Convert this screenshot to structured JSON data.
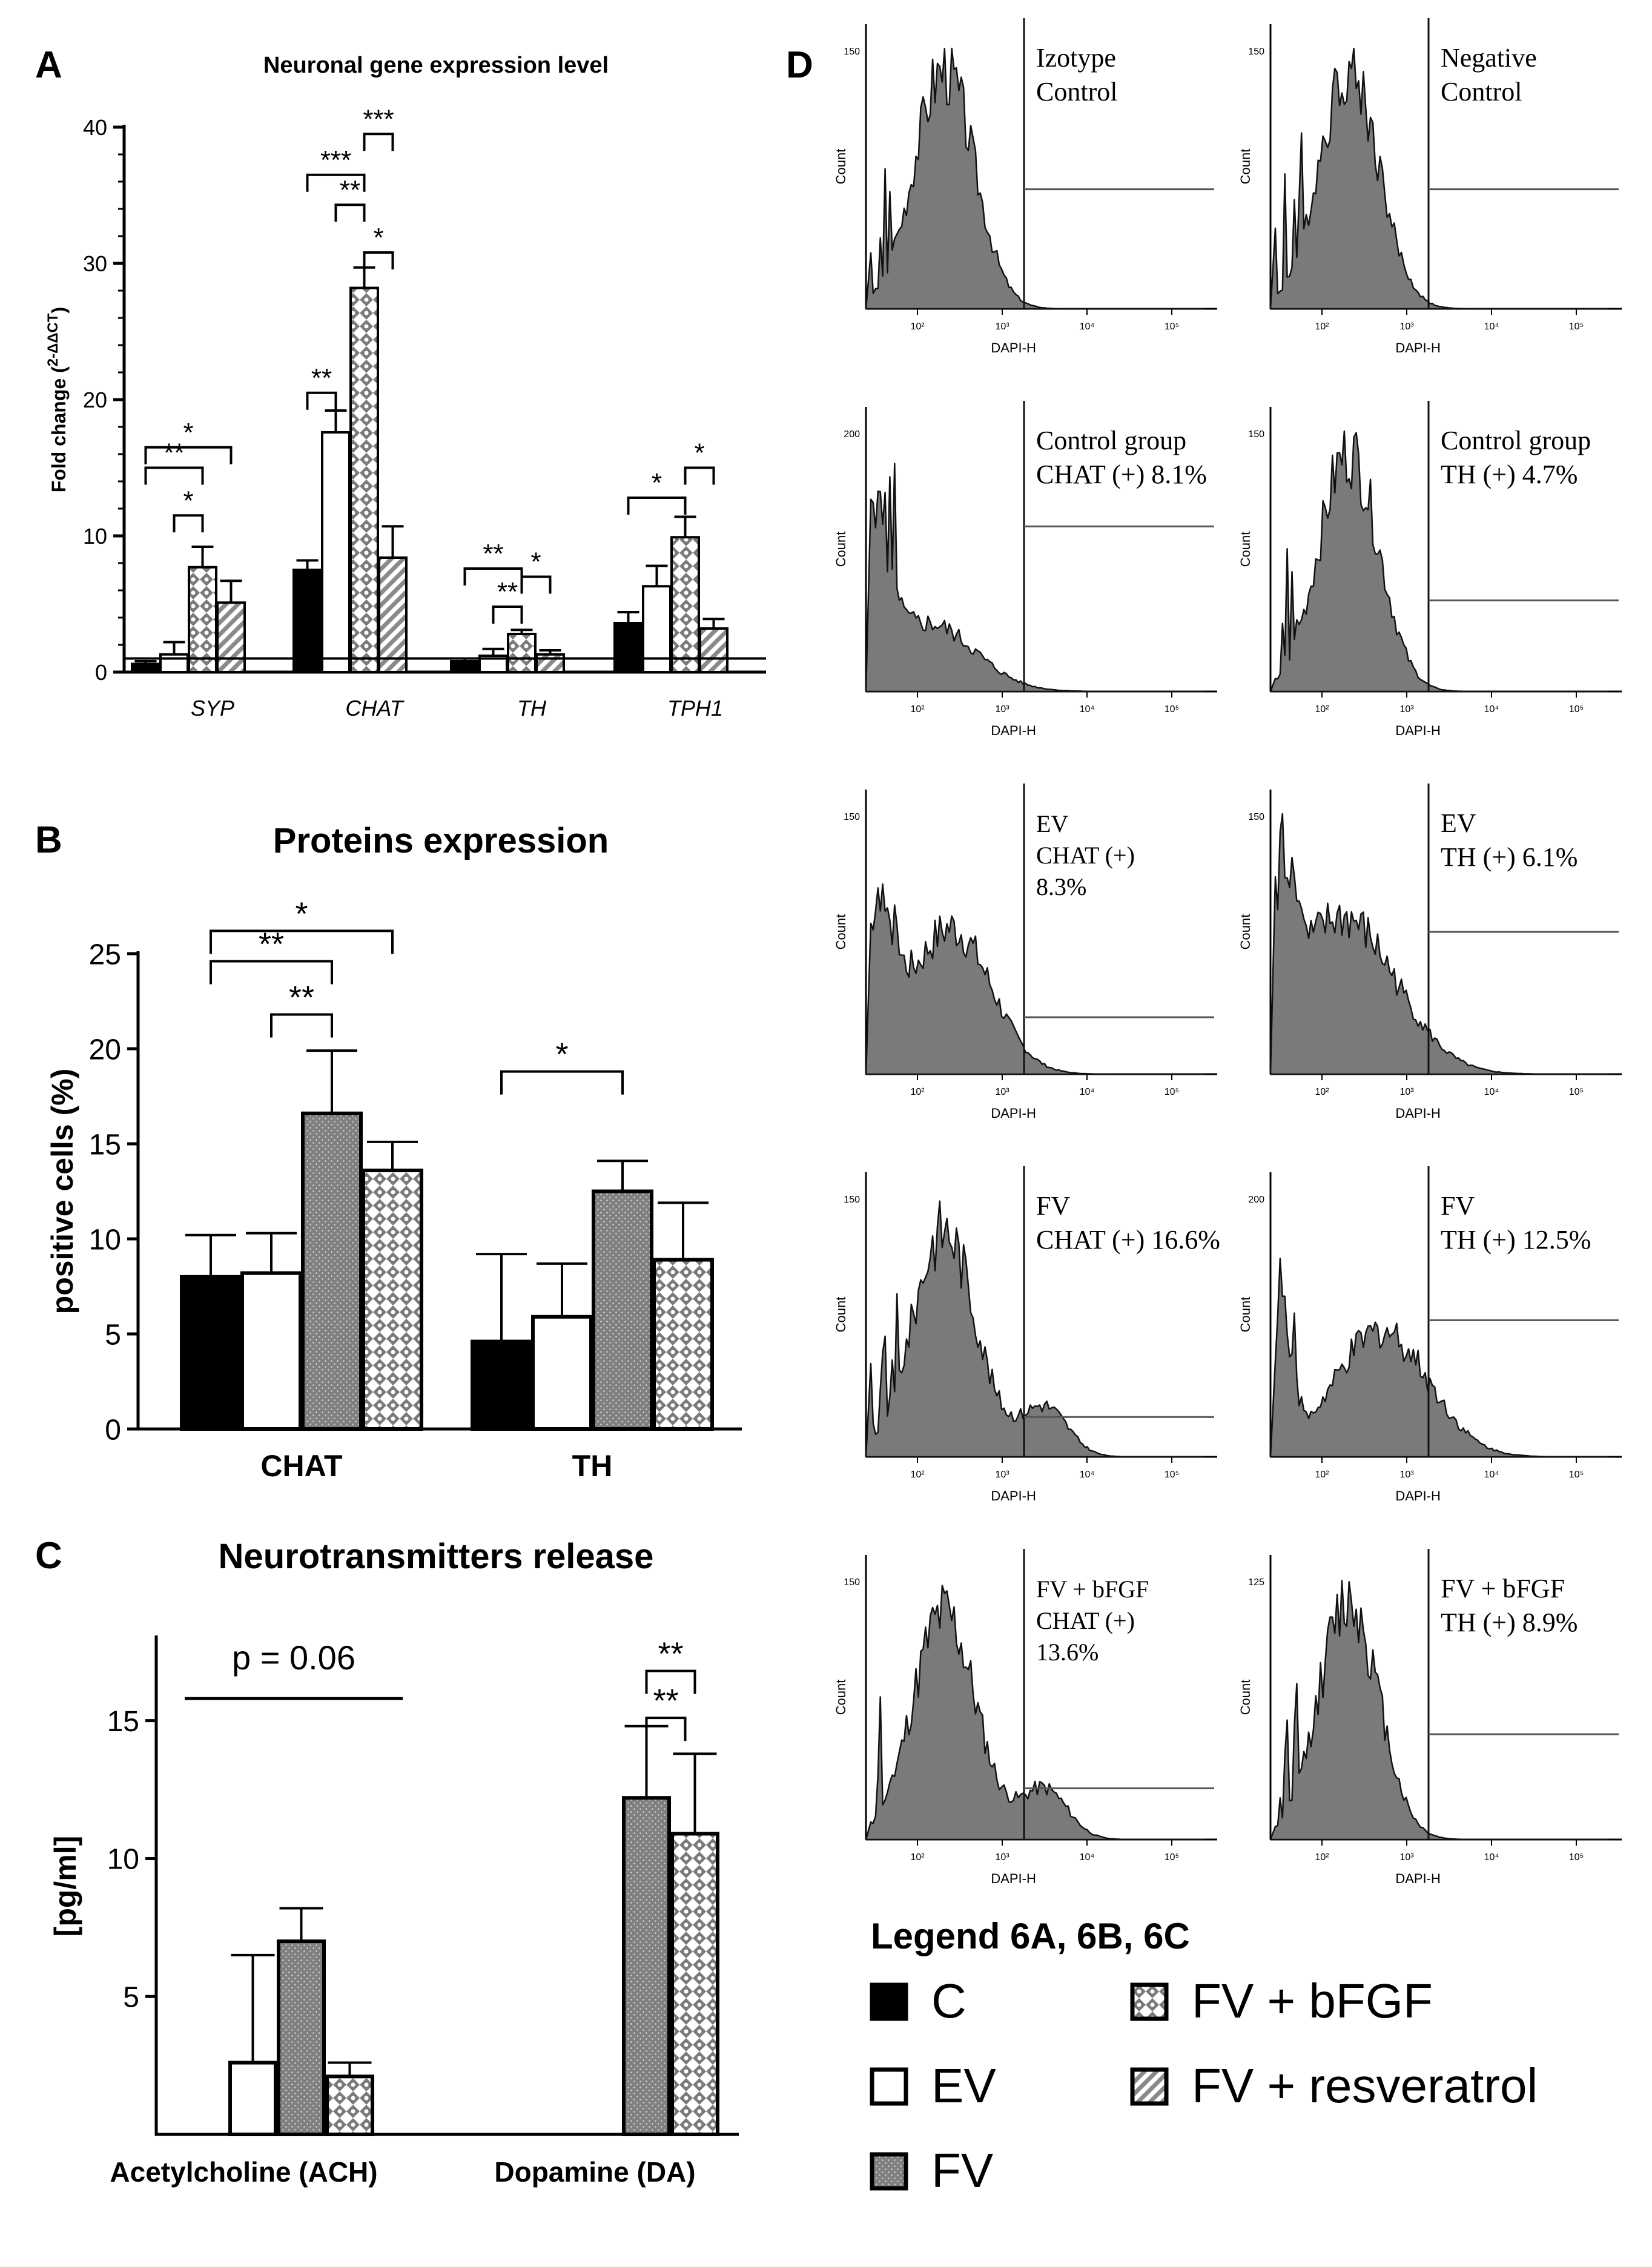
{
  "legend": {
    "title": "Legend 6A, 6B, 6C",
    "items": [
      {
        "label": "C",
        "fill": "#000000"
      },
      {
        "label": "EV",
        "fill": "#ffffff"
      },
      {
        "label": "FV",
        "fill": "fv"
      },
      {
        "label": "FV + bFGF",
        "fill": "fvb"
      },
      {
        "label": "FV + resveratrol",
        "fill": "res"
      }
    ]
  },
  "chart_data": [
    {
      "panel": "A",
      "type": "bar",
      "title": "Neuronal gene expression level",
      "ylabel": "Fold change (2-ΔΔCT)",
      "ylim": [
        0,
        40
      ],
      "yticks": [
        0,
        10,
        20,
        30,
        40
      ],
      "categories": [
        "SYP",
        "CHAT",
        "TH",
        "TPH1"
      ],
      "series": [
        {
          "key": "C",
          "values": [
            0.6,
            7.5,
            0.8,
            3.6
          ],
          "errors": [
            0.2,
            0.7,
            0.2,
            0.8
          ]
        },
        {
          "key": "EV",
          "values": [
            1.3,
            17.6,
            1.2,
            6.3
          ],
          "errors": [
            0.9,
            1.6,
            0.5,
            1.5
          ]
        },
        {
          "key": "FV + bFGF",
          "values": [
            7.7,
            28.2,
            2.8,
            9.9
          ],
          "errors": [
            1.5,
            1.5,
            0.3,
            1.5
          ]
        },
        {
          "key": "FV + resveratrol",
          "values": [
            5.1,
            8.4,
            1.3,
            3.2
          ],
          "errors": [
            1.6,
            2.3,
            0.3,
            0.7
          ]
        }
      ],
      "baseline": 1,
      "significance": [
        {
          "cat": 0,
          "from": 0,
          "to": 3,
          "y": 16.5,
          "label": "*"
        },
        {
          "cat": 0,
          "from": 0,
          "to": 2,
          "y": 15.0,
          "label": "**"
        },
        {
          "cat": 0,
          "from": 1,
          "to": 2,
          "y": 11.5,
          "label": "*"
        },
        {
          "cat": 1,
          "from": 0,
          "to": 2,
          "y": 36.5,
          "label": "***"
        },
        {
          "cat": 1,
          "from": 2,
          "to": 3,
          "y": 39.5,
          "label": "***"
        },
        {
          "cat": 1,
          "from": 1,
          "to": 2,
          "y": 34.3,
          "label": "**"
        },
        {
          "cat": 1,
          "from": 2,
          "to": 3,
          "y": 30.8,
          "label": "*"
        },
        {
          "cat": 1,
          "from": 0,
          "to": 1,
          "y": 20.5,
          "label": "**"
        },
        {
          "cat": 2,
          "from": 0,
          "to": 2,
          "y": 7.6,
          "label": "**"
        },
        {
          "cat": 2,
          "from": 1,
          "to": 2,
          "y": 4.8,
          "label": "**"
        },
        {
          "cat": 2,
          "from": 2,
          "to": 3,
          "y": 7.0,
          "label": "*"
        },
        {
          "cat": 3,
          "from": 0,
          "to": 2,
          "y": 12.8,
          "label": "*"
        },
        {
          "cat": 3,
          "from": 2,
          "to": 3,
          "y": 15.0,
          "label": "*"
        }
      ]
    },
    {
      "panel": "B",
      "type": "bar",
      "title": "Proteins expression",
      "ylabel": "positive cells (%)",
      "ylim": [
        0,
        25
      ],
      "yticks": [
        0,
        5,
        10,
        15,
        20,
        25
      ],
      "categories": [
        "CHAT",
        "TH"
      ],
      "series": [
        {
          "key": "C",
          "values": [
            8.0,
            4.6
          ],
          "errors": [
            2.2,
            4.6
          ]
        },
        {
          "key": "EV",
          "values": [
            8.2,
            5.9
          ],
          "errors": [
            2.1,
            2.8
          ]
        },
        {
          "key": "FV",
          "values": [
            16.6,
            12.5
          ],
          "errors": [
            3.3,
            1.6
          ]
        },
        {
          "key": "FV + bFGF",
          "values": [
            13.6,
            8.9
          ],
          "errors": [
            1.5,
            3.0
          ]
        }
      ],
      "significance": [
        {
          "cat": 0,
          "from": 0,
          "to": 3,
          "y": 26.2,
          "label": "*"
        },
        {
          "cat": 0,
          "from": 0,
          "to": 2,
          "y": 24.6,
          "label": "**"
        },
        {
          "cat": 0,
          "from": 1,
          "to": 2,
          "y": 21.8,
          "label": "**"
        },
        {
          "cat": 1,
          "from": 0,
          "to": 2,
          "y": 18.8,
          "label": "*"
        }
      ]
    },
    {
      "panel": "C",
      "type": "bar",
      "title": "Neurotransmitters release",
      "ylabel": "[pg/ml]",
      "ylim": [
        0,
        18
      ],
      "yticks": [
        5,
        10,
        15
      ],
      "categories": [
        "Acetylcholine (ACH)",
        "Dopamine (DA)"
      ],
      "series": [
        {
          "key": "EV",
          "values": [
            2.6,
            null
          ],
          "errors": [
            3.9,
            0
          ]
        },
        {
          "key": "FV",
          "values": [
            7.0,
            12.2
          ],
          "errors": [
            1.2,
            2.6
          ]
        },
        {
          "key": "FV + bFGF",
          "values": [
            2.1,
            10.9
          ],
          "errors": [
            0.5,
            2.9
          ]
        }
      ],
      "significance": [
        {
          "cat": 1,
          "from": 1,
          "to": 2,
          "y": 16.8,
          "label": "**"
        },
        {
          "cat": 1,
          "from": 1,
          "to": 1.8,
          "y": 15.1,
          "label": "**"
        }
      ],
      "pvalue": {
        "label": "p = 0.06",
        "y": 15.8
      }
    }
  ],
  "flow_cytometry": {
    "xlabel": "DAPI-H",
    "ylabel": "Count",
    "x_ticks": [
      "10²",
      "10³",
      "10⁴",
      "10⁵"
    ],
    "plots": [
      {
        "lines": [
          "Izotype",
          "Control"
        ],
        "shape": "bell",
        "gate_level": 0.42,
        "ymax": "150"
      },
      {
        "lines": [
          "Negative",
          "Control"
        ],
        "shape": "bell",
        "gate_level": 0.42,
        "ymax": "150"
      },
      {
        "lines": [
          "Control group",
          "CHAT (+) 8.1%"
        ],
        "shape": "decay",
        "gate_level": 0.58,
        "ymax": "200"
      },
      {
        "lines": [
          "Control group",
          "TH (+) 4.7%"
        ],
        "shape": "bell",
        "gate_level": 0.32,
        "ymax": "150"
      },
      {
        "lines": [
          "EV",
          "CHAT (+)",
          "8.3%"
        ],
        "shape": "bimodal",
        "gate_level": 0.2,
        "ymax": "150"
      },
      {
        "lines": [
          "EV",
          "TH (+) 6.1%"
        ],
        "shape": "broad",
        "gate_level": 0.5,
        "ymax": "150"
      },
      {
        "lines": [
          "FV",
          "CHAT (+) 16.6%"
        ],
        "shape": "shoulder",
        "gate_level": 0.14,
        "ymax": "150"
      },
      {
        "lines": [
          "FV",
          "TH (+) 12.5%"
        ],
        "shape": "spikebell",
        "gate_level": 0.48,
        "ymax": "200"
      },
      {
        "lines": [
          "FV + bFGF",
          "CHAT (+)",
          "13.6%"
        ],
        "shape": "shoulder",
        "gate_level": 0.18,
        "ymax": "150"
      },
      {
        "lines": [
          "FV + bFGF",
          "TH (+) 8.9%"
        ],
        "shape": "bell",
        "gate_level": 0.37,
        "ymax": "125"
      }
    ]
  },
  "labels": {
    "A": "A",
    "B": "B",
    "C": "C",
    "D": "D"
  }
}
